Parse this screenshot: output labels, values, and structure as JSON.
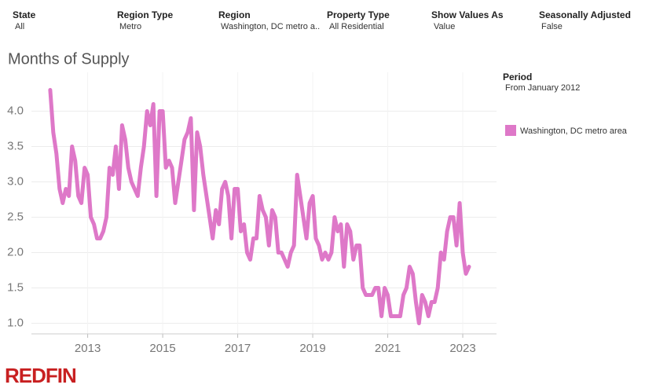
{
  "filters": [
    {
      "label": "State",
      "value": "All"
    },
    {
      "label": "Region Type",
      "value": "Metro"
    },
    {
      "label": "Region",
      "value": "Washington, DC metro a.."
    },
    {
      "label": "Property Type",
      "value": "All Residential"
    },
    {
      "label": "Show Values As",
      "value": "Value"
    },
    {
      "label": "Seasonally Adjusted",
      "value": "False"
    }
  ],
  "period": {
    "label": "Period",
    "value": "From January 2012"
  },
  "logo": "REDFIN",
  "chart_data": {
    "type": "line",
    "title": "Months of Supply",
    "x": [
      2012,
      2012.083,
      2012.167,
      2012.25,
      2012.333,
      2012.417,
      2012.5,
      2012.583,
      2012.667,
      2012.75,
      2012.833,
      2012.917,
      2013,
      2013.083,
      2013.167,
      2013.25,
      2013.333,
      2013.417,
      2013.5,
      2013.583,
      2013.667,
      2013.75,
      2013.833,
      2013.917,
      2014,
      2014.083,
      2014.167,
      2014.25,
      2014.333,
      2014.417,
      2014.5,
      2014.583,
      2014.667,
      2014.75,
      2014.833,
      2014.917,
      2015,
      2015.083,
      2015.167,
      2015.25,
      2015.333,
      2015.417,
      2015.5,
      2015.583,
      2015.667,
      2015.75,
      2015.833,
      2015.917,
      2016,
      2016.083,
      2016.167,
      2016.25,
      2016.333,
      2016.417,
      2016.5,
      2016.583,
      2016.667,
      2016.75,
      2016.833,
      2016.917,
      2017,
      2017.083,
      2017.167,
      2017.25,
      2017.333,
      2017.417,
      2017.5,
      2017.583,
      2017.667,
      2017.75,
      2017.833,
      2017.917,
      2018,
      2018.083,
      2018.167,
      2018.25,
      2018.333,
      2018.417,
      2018.5,
      2018.583,
      2018.667,
      2018.75,
      2018.833,
      2018.917,
      2019,
      2019.083,
      2019.167,
      2019.25,
      2019.333,
      2019.417,
      2019.5,
      2019.583,
      2019.667,
      2019.75,
      2019.833,
      2019.917,
      2020,
      2020.083,
      2020.167,
      2020.25,
      2020.333,
      2020.417,
      2020.5,
      2020.583,
      2020.667,
      2020.75,
      2020.833,
      2020.917,
      2021,
      2021.083,
      2021.167,
      2021.25,
      2021.333,
      2021.417,
      2021.5,
      2021.583,
      2021.667,
      2021.75,
      2021.833,
      2021.917,
      2022,
      2022.083,
      2022.167,
      2022.25,
      2022.333,
      2022.417,
      2022.5,
      2022.583,
      2022.667,
      2022.75,
      2022.833,
      2022.917,
      2023,
      2023.083,
      2023.167
    ],
    "series": [
      {
        "name": "Washington, DC metro area",
        "color": "#de78c8",
        "values": [
          4.3,
          3.7,
          3.4,
          2.9,
          2.7,
          2.9,
          2.8,
          3.5,
          3.3,
          2.8,
          2.7,
          3.2,
          3.1,
          2.5,
          2.4,
          2.2,
          2.2,
          2.3,
          2.5,
          3.2,
          3.1,
          3.5,
          2.9,
          3.8,
          3.6,
          3.2,
          3.0,
          2.9,
          2.8,
          3.2,
          3.5,
          4.0,
          3.8,
          4.1,
          2.8,
          4.0,
          4.0,
          3.2,
          3.3,
          3.2,
          2.7,
          3.0,
          3.3,
          3.6,
          3.7,
          3.9,
          2.6,
          3.7,
          3.5,
          3.1,
          2.8,
          2.5,
          2.2,
          2.6,
          2.4,
          2.9,
          3.0,
          2.8,
          2.2,
          2.9,
          2.9,
          2.3,
          2.4,
          2.0,
          1.9,
          2.2,
          2.2,
          2.8,
          2.6,
          2.5,
          2.1,
          2.6,
          2.5,
          2.0,
          2.0,
          1.9,
          1.8,
          2.0,
          2.1,
          3.1,
          2.8,
          2.5,
          2.2,
          2.7,
          2.8,
          2.2,
          2.1,
          1.9,
          2.0,
          1.9,
          2.0,
          2.5,
          2.3,
          2.4,
          1.8,
          2.4,
          2.3,
          1.9,
          2.1,
          2.1,
          1.5,
          1.4,
          1.4,
          1.4,
          1.5,
          1.5,
          1.1,
          1.5,
          1.4,
          1.1,
          1.1,
          1.1,
          1.1,
          1.4,
          1.5,
          1.8,
          1.7,
          1.3,
          1.0,
          1.4,
          1.3,
          1.1,
          1.3,
          1.3,
          1.5,
          2.0,
          1.9,
          2.3,
          2.5,
          2.5,
          2.1,
          2.7,
          2.0,
          1.7,
          1.8
        ]
      }
    ],
    "xlim": [
      2011.5,
      2023.9
    ],
    "xticks": [
      2013,
      2015,
      2017,
      2019,
      2021,
      2023
    ],
    "ylim": [
      0.85,
      4.55
    ],
    "yticks": [
      {
        "value": 1,
        "label": "1.0"
      },
      {
        "value": 1.5,
        "label": "1.5"
      },
      {
        "value": 2,
        "label": "2.0"
      },
      {
        "value": 2.5,
        "label": "2.5"
      },
      {
        "value": 3,
        "label": "3.0"
      },
      {
        "value": 3.5,
        "label": "3.5"
      },
      {
        "value": 4,
        "label": "4.0"
      }
    ],
    "grid": true
  }
}
